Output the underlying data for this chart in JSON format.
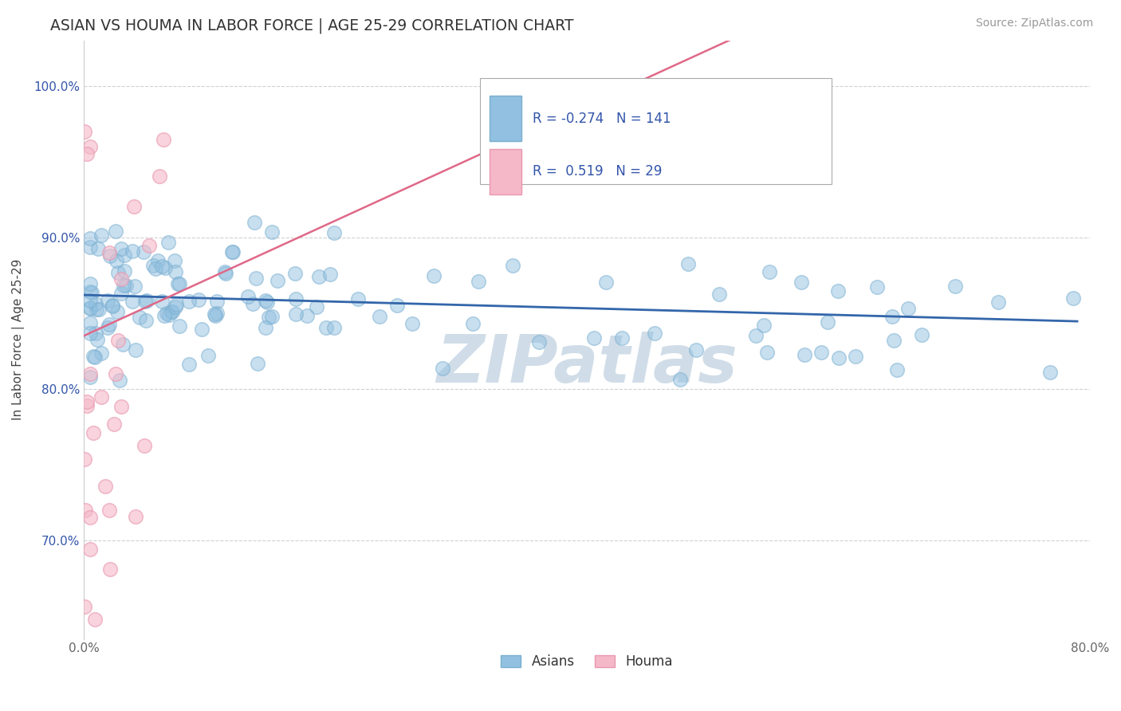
{
  "title": "ASIAN VS HOUMA IN LABOR FORCE | AGE 25-29 CORRELATION CHART",
  "source_text": "Source: ZipAtlas.com",
  "ylabel": "In Labor Force | Age 25-29",
  "xlim": [
    0.0,
    0.8
  ],
  "ylim": [
    0.635,
    1.03
  ],
  "ytick_positions": [
    0.7,
    0.8,
    0.9,
    1.0
  ],
  "yticklabels": [
    "70.0%",
    "80.0%",
    "90.0%",
    "100.0%"
  ],
  "legend_asian_r": "-0.274",
  "legend_asian_n": "141",
  "legend_houma_r": "0.519",
  "legend_houma_n": "29",
  "asian_color": "#92c0e0",
  "asian_edge_color": "#7aafd0",
  "houma_color": "#f5b8c8",
  "houma_edge_color": "#e898b0",
  "asian_line_color": "#3366aa",
  "houma_line_color": "#e06888",
  "watermark_color": "#d0dde8",
  "watermark_text": "ZIPatlas",
  "legend_text_color": "#3355aa",
  "grid_color": "#cccccc",
  "ytick_color": "#3355aa",
  "title_color": "#333333",
  "source_color": "#999999"
}
